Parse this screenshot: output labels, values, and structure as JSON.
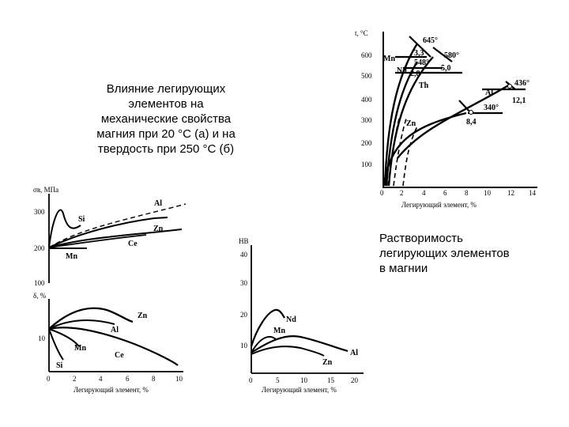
{
  "slide": {
    "caption_left": [
      "Влияние легирующих",
      "элементов на",
      "механические свойства",
      "магния при 20 °С (а) и на",
      "твердость при 250 °С (б)"
    ],
    "caption_right": [
      "Растворимость",
      "легирующих элементов",
      "в магнии"
    ]
  },
  "chart_data": [
    {
      "type": "line",
      "id": "solubility",
      "ylabel": "t, °C",
      "xlabel": "Легирующий элемент, %",
      "xlim": [
        0,
        14
      ],
      "ylim": [
        0,
        650
      ],
      "xticks": [
        "0",
        "2",
        "4",
        "6",
        "8",
        "10",
        "12",
        "14"
      ],
      "yticks": [
        "100",
        "200",
        "300",
        "400",
        "500",
        "600"
      ],
      "series": [
        {
          "name": "Mn",
          "x": [
            0.2,
            0.6,
            1.2,
            2.0,
            2.8,
            3.3
          ],
          "y": [
            0,
            200,
            400,
            540,
            610,
            645
          ]
        },
        {
          "name": "Nd",
          "x": [
            0.4,
            1.0,
            1.8,
            2.6,
            3.3
          ],
          "y": [
            0,
            200,
            400,
            510,
            548
          ]
        },
        {
          "name": "Th",
          "x": [
            0.7,
            1.6,
            2.8,
            4.0,
            5.0
          ],
          "y": [
            0,
            200,
            400,
            520,
            580
          ]
        },
        {
          "name": "Zn",
          "x": [
            0.5,
            1.2,
            2.5,
            4.5,
            6.5,
            8.4
          ],
          "y": [
            0,
            180,
            270,
            300,
            320,
            340
          ]
        },
        {
          "name": "Al",
          "x": [
            1.2,
            2.2,
            4.0,
            6.5,
            9.0,
            12.1
          ],
          "y": [
            0,
            180,
            280,
            330,
            370,
            436
          ]
        }
      ],
      "annotations": [
        "645°",
        "3,3",
        "548°",
        "580°",
        "5,0",
        "2,8",
        "436°",
        "12,1",
        "340°",
        "8,4"
      ]
    },
    {
      "type": "line",
      "id": "tensile",
      "ylabel": "σв, МПа",
      "yticks": [
        "300",
        "200",
        "100"
      ],
      "series_labels": [
        "Si",
        "Al",
        "Zn",
        "Ce",
        "Mn"
      ]
    },
    {
      "type": "line",
      "id": "elongation",
      "ylabel": "δ, %",
      "xlabel": "Легирующий элемент, %",
      "xticks": [
        "0",
        "2",
        "4",
        "6",
        "8",
        "10"
      ],
      "yticks": [
        "10"
      ],
      "series_labels": [
        "Zn",
        "Al",
        "Mn",
        "Ce",
        "Si"
      ]
    },
    {
      "type": "line",
      "id": "hardness",
      "ylabel": "HB",
      "xlabel": "Легирующий элемент, %",
      "xticks": [
        "0",
        "5",
        "10",
        "15",
        "20"
      ],
      "yticks": [
        "40",
        "30",
        "20",
        "10"
      ],
      "series_labels": [
        "Nd",
        "Mn",
        "Al",
        "Zn"
      ]
    }
  ]
}
